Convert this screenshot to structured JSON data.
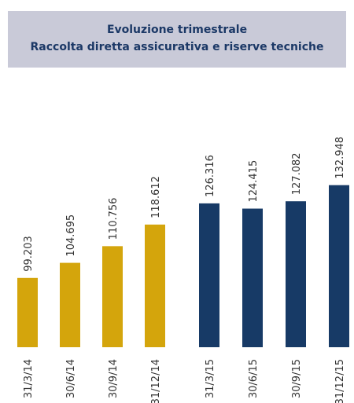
{
  "chart_data": {
    "type": "bar",
    "title": "Evoluzione trimestrale",
    "subtitle": "Raccolta diretta assicurativa e riserve tecniche",
    "categories": [
      "31/3/14",
      "30/6/14",
      "30/9/14",
      "31/12/14",
      "31/3/15",
      "30/6/15",
      "30/9/15",
      "31/12/15"
    ],
    "values": [
      99203,
      104695,
      110756,
      118612,
      126316,
      124415,
      127082,
      132948
    ],
    "value_labels": [
      "99.203",
      "104.695",
      "110.756",
      "118.612",
      "126.316",
      "124.415",
      "127.082",
      "132.948"
    ],
    "colors": [
      "#d4a50c",
      "#d4a50c",
      "#d4a50c",
      "#d4a50c",
      "#173a66",
      "#173a66",
      "#173a66",
      "#173a66"
    ],
    "ylim": [
      74000,
      140000
    ]
  }
}
